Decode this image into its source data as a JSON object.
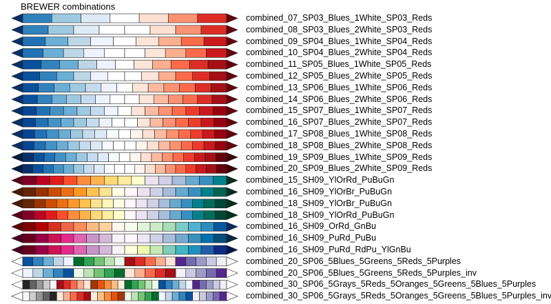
{
  "title": "BREWER combinations",
  "colormaps": [
    {
      "name": "combined_07_SP03_Blues_1White_SP03_Reds",
      "under": "#08306b",
      "over": "#67000d",
      "colors": [
        "#3182bd",
        "#9ecae1",
        "#deebf7",
        "#ffffff",
        "#fee0d2",
        "#fc9272",
        "#de2d26"
      ]
    },
    {
      "name": "combined_08_SP03_Blues_2White_SP03_Reds",
      "under": "#08306b",
      "over": "#67000d",
      "colors": [
        "#3182bd",
        "#9ecae1",
        "#deebf7",
        "#ffffff",
        "#ffffff",
        "#fee0d2",
        "#fc9272",
        "#de2d26"
      ]
    },
    {
      "name": "combined_09_SP04_Blues_1White_SP04_Reds",
      "under": "#08306b",
      "over": "#67000d",
      "colors": [
        "#2171b5",
        "#6baed6",
        "#bdd7e7",
        "#eff3ff",
        "#ffffff",
        "#fee5d9",
        "#fcae91",
        "#fb6a4a",
        "#cb181d"
      ]
    },
    {
      "name": "combined_10_SP04_Blues_2White_SP04_Reds",
      "under": "#08306b",
      "over": "#67000d",
      "colors": [
        "#2171b5",
        "#6baed6",
        "#bdd7e7",
        "#eff3ff",
        "#ffffff",
        "#ffffff",
        "#fee5d9",
        "#fcae91",
        "#fb6a4a",
        "#cb181d"
      ]
    },
    {
      "name": "combined_11_SP05_Blues_1White_SP05_Reds",
      "under": "#08306b",
      "over": "#67000d",
      "colors": [
        "#08519c",
        "#3182bd",
        "#6baed6",
        "#bdd7e7",
        "#eff3ff",
        "#ffffff",
        "#fee5d9",
        "#fcae91",
        "#fb6a4a",
        "#de2d26",
        "#a50f15"
      ]
    },
    {
      "name": "combined_12_SP05_Blues_2White_SP05_Reds",
      "under": "#08306b",
      "over": "#67000d",
      "colors": [
        "#08519c",
        "#3182bd",
        "#6baed6",
        "#bdd7e7",
        "#eff3ff",
        "#ffffff",
        "#ffffff",
        "#fee5d9",
        "#fcae91",
        "#fb6a4a",
        "#de2d26",
        "#a50f15"
      ]
    },
    {
      "name": "combined_13_SP06_Blues_1White_SP06_Reds",
      "under": "#08306b",
      "over": "#67000d",
      "colors": [
        "#08519c",
        "#3182bd",
        "#6baed6",
        "#9ecae1",
        "#c6dbef",
        "#eff3ff",
        "#ffffff",
        "#fee5d9",
        "#fcbba1",
        "#fc9272",
        "#fb6a4a",
        "#de2d26",
        "#a50f15"
      ]
    },
    {
      "name": "combined_14_SP06_Blues_2White_SP06_Reds",
      "under": "#08306b",
      "over": "#67000d",
      "colors": [
        "#08519c",
        "#3182bd",
        "#6baed6",
        "#9ecae1",
        "#c6dbef",
        "#eff3ff",
        "#ffffff",
        "#ffffff",
        "#fee5d9",
        "#fcbba1",
        "#fc9272",
        "#fb6a4a",
        "#de2d26",
        "#a50f15"
      ]
    },
    {
      "name": "combined_15_SP07_Blues_1White_SP07_Reds",
      "under": "#08306b",
      "over": "#67000d",
      "colors": [
        "#084594",
        "#2171b5",
        "#4292c6",
        "#6baed6",
        "#9ecae1",
        "#c6dbef",
        "#eff3ff",
        "#ffffff",
        "#fee5d9",
        "#fcbba1",
        "#fc9272",
        "#fb6a4a",
        "#ef3b2c",
        "#cb181d",
        "#99000d"
      ]
    },
    {
      "name": "combined_16_SP07_Blues_2White_SP07_Reds",
      "under": "#08306b",
      "over": "#67000d",
      "colors": [
        "#084594",
        "#2171b5",
        "#4292c6",
        "#6baed6",
        "#9ecae1",
        "#c6dbef",
        "#eff3ff",
        "#ffffff",
        "#ffffff",
        "#fee5d9",
        "#fcbba1",
        "#fc9272",
        "#fb6a4a",
        "#ef3b2c",
        "#cb181d",
        "#99000d"
      ]
    },
    {
      "name": "combined_17_SP08_Blues_1White_SP08_Reds",
      "under": "#08306b",
      "over": "#67000d",
      "colors": [
        "#084594",
        "#2171b5",
        "#4292c6",
        "#6baed6",
        "#9ecae1",
        "#c6dbef",
        "#deebf7",
        "#f7fbff",
        "#ffffff",
        "#fff5f0",
        "#fee0d2",
        "#fcbba1",
        "#fc9272",
        "#fb6a4a",
        "#ef3b2c",
        "#cb181d",
        "#99000d"
      ]
    },
    {
      "name": "combined_18_SP08_Blues_2White_SP08_Reds",
      "under": "#08306b",
      "over": "#67000d",
      "colors": [
        "#084594",
        "#2171b5",
        "#4292c6",
        "#6baed6",
        "#9ecae1",
        "#c6dbef",
        "#deebf7",
        "#f7fbff",
        "#ffffff",
        "#ffffff",
        "#fff5f0",
        "#fee0d2",
        "#fcbba1",
        "#fc9272",
        "#fb6a4a",
        "#ef3b2c",
        "#cb181d",
        "#99000d"
      ]
    },
    {
      "name": "combined_19_SP09_Blues_1White_SP09_Reds",
      "under": "#041c40",
      "over": "#3d0008",
      "colors": [
        "#08306b",
        "#08519c",
        "#2171b5",
        "#4292c6",
        "#6baed6",
        "#9ecae1",
        "#c6dbef",
        "#deebf7",
        "#f7fbff",
        "#ffffff",
        "#fff5f0",
        "#fee0d2",
        "#fcbba1",
        "#fc9272",
        "#fb6a4a",
        "#ef3b2c",
        "#cb181d",
        "#a50f15",
        "#67000d"
      ]
    },
    {
      "name": "combined_20_SP09_Blues_2White_SP09_Reds",
      "under": "#041c40",
      "over": "#3d0008",
      "colors": [
        "#08306b",
        "#08519c",
        "#2171b5",
        "#4292c6",
        "#6baed6",
        "#9ecae1",
        "#c6dbef",
        "#deebf7",
        "#f7fbff",
        "#ffffff",
        "#ffffff",
        "#fff5f0",
        "#fee0d2",
        "#fcbba1",
        "#fc9272",
        "#fb6a4a",
        "#ef3b2c",
        "#cb181d",
        "#a50f15",
        "#67000d"
      ]
    },
    {
      "name": "combined_15_SH09_YlOrRd_PuBuGn",
      "under": "#5c0018",
      "over": "#00301f",
      "colors": [
        "#800026",
        "#bd0026",
        "#e31a1c",
        "#fc4e2a",
        "#fd8d3c",
        "#feb24c",
        "#fed976",
        "#ffeda0",
        "#ffffcc",
        "#ece2f0",
        "#d0d1e6",
        "#a6bddb",
        "#67a9cf",
        "#3690c0",
        "#02818a"
      ]
    },
    {
      "name": "combined_16_SH09_YlOrBr_PuBuGn",
      "under": "#4a1a03",
      "over": "#00301f",
      "colors": [
        "#662506",
        "#993404",
        "#cc4c02",
        "#ec7014",
        "#fe9929",
        "#fec44f",
        "#fee391",
        "#ffffe5",
        "#fff7fb",
        "#ece2f0",
        "#d0d1e6",
        "#a6bddb",
        "#67a9cf",
        "#3690c0",
        "#02818a",
        "#016450"
      ]
    },
    {
      "name": "combined_18_SH09_YlOrBr_PuBuGn",
      "under": "#4a1a03",
      "over": "#00301f",
      "colors": [
        "#662506",
        "#993404",
        "#cc4c02",
        "#ec7014",
        "#fe9929",
        "#fec44f",
        "#fee391",
        "#fff7bc",
        "#ffffe5",
        "#fff7fb",
        "#ece2f0",
        "#d0d1e6",
        "#a6bddb",
        "#67a9cf",
        "#3690c0",
        "#02818a",
        "#016c59",
        "#014636"
      ]
    },
    {
      "name": "combined_18_SH09_YlOrRd_PuBuGn",
      "under": "#5c0018",
      "over": "#00301f",
      "colors": [
        "#800026",
        "#bd0026",
        "#e31a1c",
        "#fc4e2a",
        "#fd8d3c",
        "#feb24c",
        "#fed976",
        "#ffeda0",
        "#ffffcc",
        "#fff7fb",
        "#ece2f0",
        "#d0d1e6",
        "#a6bddb",
        "#67a9cf",
        "#3690c0",
        "#02818a",
        "#016c59",
        "#014636"
      ]
    },
    {
      "name": "combined_16_SH09_OrRd_GnBu",
      "under": "#5c0000",
      "over": "#062f5c",
      "colors": [
        "#7f0000",
        "#b30000",
        "#d7301f",
        "#ef6548",
        "#fc8d59",
        "#fdbb84",
        "#fdd49e",
        "#fff7ec",
        "#f7fcf0",
        "#e0f3db",
        "#ccebc5",
        "#a8ddb5",
        "#7bccc4",
        "#4eb3d3",
        "#2b8cbe",
        "#08589e"
      ]
    },
    {
      "name": "combined_16_SH09_PuRd_PuBu",
      "under": "#4d001f",
      "over": "#022a47",
      "colors": [
        "#67001f",
        "#980043",
        "#ce1256",
        "#e7298a",
        "#df65b0",
        "#c994c7",
        "#d4b9da",
        "#f7f4f9",
        "#fff7fb",
        "#ece7f2",
        "#d0d1e6",
        "#a6bddb",
        "#74a9cf",
        "#3690c0",
        "#0570b0",
        "#034e7b"
      ]
    },
    {
      "name": "combined_16_SH09_PuRd_RdPu_YlGnBu",
      "under": "#4d001f",
      "over": "#06154a",
      "colors": [
        "#67001f",
        "#980043",
        "#ce1256",
        "#e7298a",
        "#df65b0",
        "#c994c7",
        "#d4b9da",
        "#f7f4f9",
        "#ffffd9",
        "#edf8b1",
        "#c7e9b4",
        "#7fcdbb",
        "#41b6c4",
        "#1d91c0",
        "#225ea8",
        "#0c2c84"
      ]
    },
    {
      "name": "combined_20_SP06_5Blues_5Greens_5Reds_5Purples",
      "under": "#ffffff",
      "over": "#ffffff",
      "colors": [
        "#08519c",
        "#3182bd",
        "#6baed6",
        "#bdd7e7",
        "#eff3ff",
        "#006d2c",
        "#31a354",
        "#74c476",
        "#bae4b3",
        "#edf8e9",
        "#a50f15",
        "#de2d26",
        "#fb6a4a",
        "#fcae91",
        "#fee5d9",
        "#54278f",
        "#756bb1",
        "#9e9ac8",
        "#cbc9e2",
        "#f2f0f7"
      ]
    },
    {
      "name": "combined_20_SP06_5Blues_5Greens_5Reds_5Purples_inv",
      "under": "#ffffff",
      "over": "#ffffff",
      "colors": [
        "#eff3ff",
        "#bdd7e7",
        "#6baed6",
        "#3182bd",
        "#08519c",
        "#edf8e9",
        "#bae4b3",
        "#74c476",
        "#31a354",
        "#006d2c",
        "#fee5d9",
        "#fcae91",
        "#fb6a4a",
        "#de2d26",
        "#a50f15",
        "#f2f0f7",
        "#cbc9e2",
        "#9e9ac8",
        "#756bb1",
        "#54278f"
      ]
    },
    {
      "name": "combined_30_SP06_5Grays_5Reds_5Oranges_5Greens_5Blues_5Purples",
      "under": "#ffffff",
      "over": "#ffffff",
      "colors": [
        "#252525",
        "#636363",
        "#969696",
        "#cccccc",
        "#f7f7f7",
        "#a50f15",
        "#de2d26",
        "#fb6a4a",
        "#fcae91",
        "#fee5d9",
        "#a63603",
        "#e6550d",
        "#fd8d3c",
        "#fdbe85",
        "#feedde",
        "#006d2c",
        "#31a354",
        "#74c476",
        "#bae4b3",
        "#edf8e9",
        "#08519c",
        "#3182bd",
        "#6baed6",
        "#bdd7e7",
        "#eff3ff",
        "#54278f",
        "#756bb1",
        "#9e9ac8",
        "#cbc9e2",
        "#f2f0f7"
      ]
    },
    {
      "name": "combined_30_SP06_5Grays_5Reds_5Oranges_5Greens_5Blues_5Purples_inv",
      "under": "#ffffff",
      "over": "#ffffff",
      "colors": [
        "#f7f7f7",
        "#cccccc",
        "#969696",
        "#636363",
        "#252525",
        "#fee5d9",
        "#fcae91",
        "#fb6a4a",
        "#de2d26",
        "#a50f15",
        "#feedde",
        "#fdbe85",
        "#fd8d3c",
        "#e6550d",
        "#a63603",
        "#edf8e9",
        "#bae4b3",
        "#74c476",
        "#31a354",
        "#006d2c",
        "#eff3ff",
        "#bdd7e7",
        "#6baed6",
        "#3182bd",
        "#08519c",
        "#f2f0f7",
        "#cbc9e2",
        "#9e9ac8",
        "#756bb1",
        "#54278f"
      ]
    }
  ]
}
